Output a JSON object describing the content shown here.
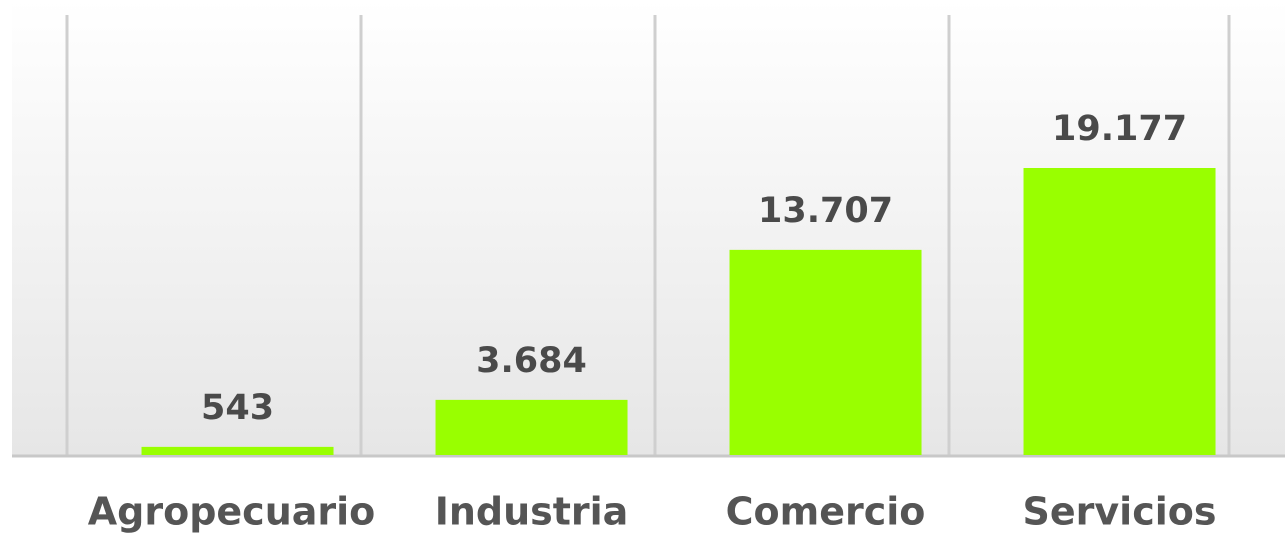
{
  "chart_data": {
    "type": "bar",
    "categories": [
      "Agropecuario",
      "Industria",
      "Comercio",
      "Servicios"
    ],
    "values": [
      543,
      3684,
      13707,
      19177
    ],
    "value_labels": [
      "543",
      "3.684",
      "13.707",
      "19.177"
    ],
    "color": "#99ff00"
  }
}
